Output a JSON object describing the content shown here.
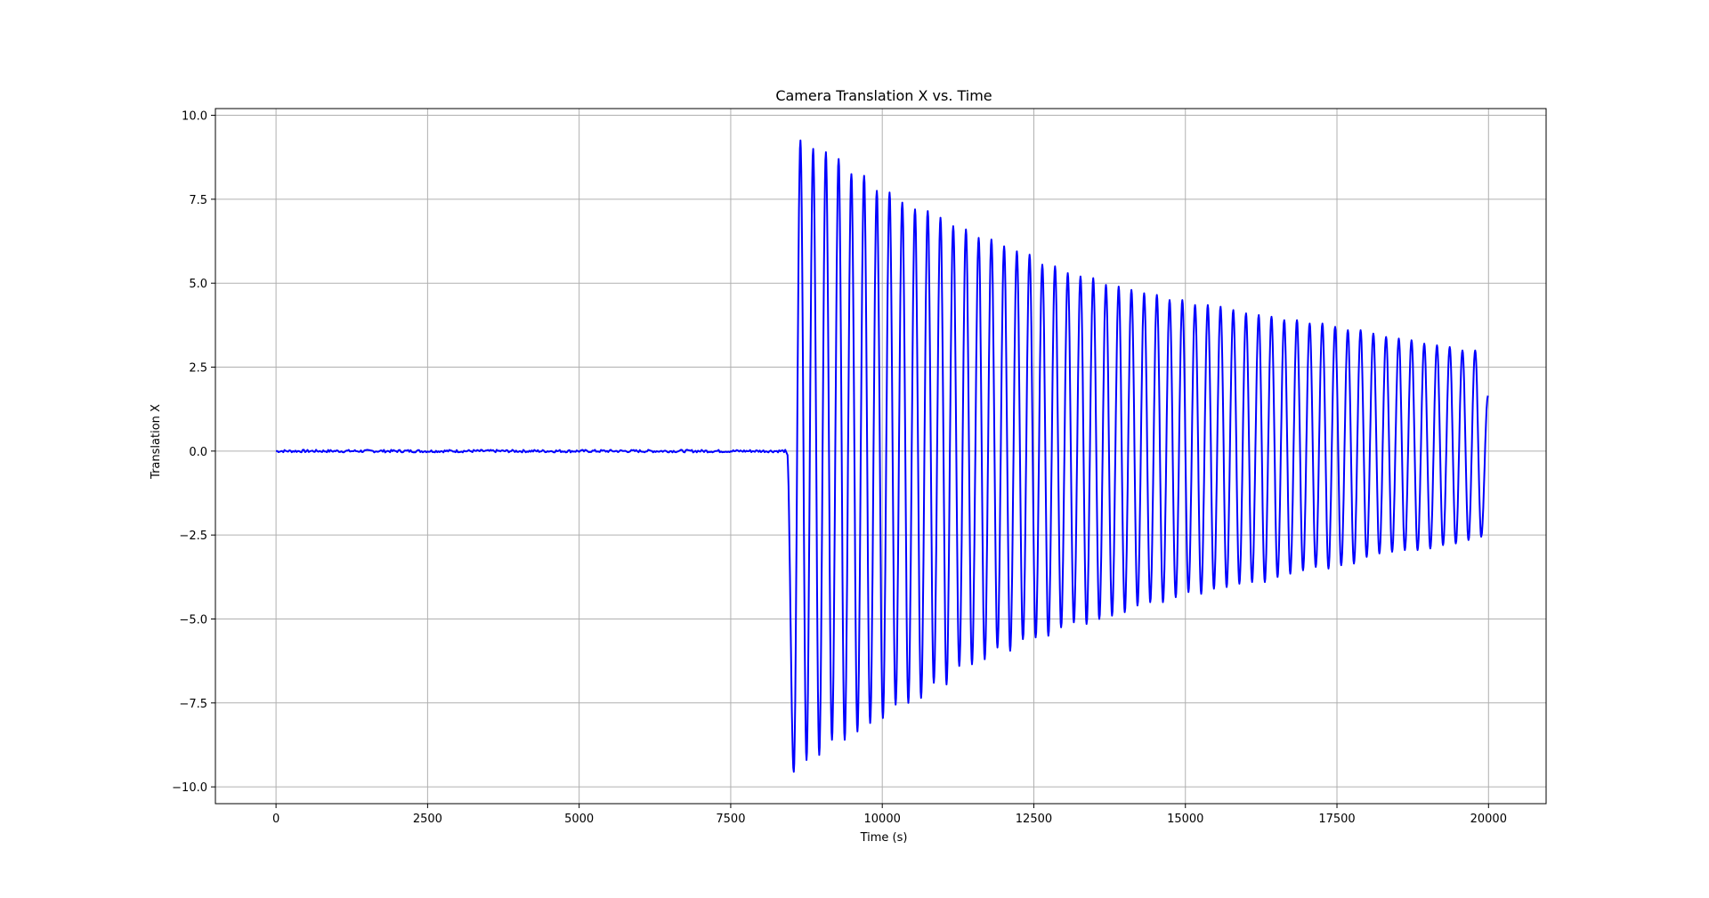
{
  "chart_data": {
    "type": "line",
    "title": "Camera Translation X vs. Time",
    "xlabel": "Time (s)",
    "ylabel": "Translation X",
    "xlim": [
      -1000,
      20950
    ],
    "ylim": [
      -10.5,
      10.2
    ],
    "grid": true,
    "legend": "none",
    "x_ticks": [
      0,
      2500,
      5000,
      7500,
      10000,
      12500,
      15000,
      17500,
      20000
    ],
    "x_tick_labels": [
      "0",
      "2500",
      "5000",
      "7500",
      "10000",
      "12500",
      "15000",
      "17500",
      "20000"
    ],
    "y_ticks": [
      10.0,
      7.5,
      5.0,
      2.5,
      0.0,
      -2.5,
      -5.0,
      -7.5,
      -10.0
    ],
    "y_tick_labels": [
      "10.0",
      "7.5",
      "5.0",
      "2.5",
      "0.0",
      "−2.5",
      "−5.0",
      "−7.5",
      "−10.0"
    ],
    "series": [
      {
        "color": "#0000ff",
        "flat_segment": {
          "x_start": 0,
          "x_end": 8400,
          "y": 0.0,
          "noise_amplitude": 0.04
        },
        "oscillation": {
          "x_start": 8430,
          "x_end": 19990,
          "end_value": 1.65,
          "peaks": [
            {
              "x": 8650,
              "y": 9.25
            },
            {
              "x": 8860,
              "y": 9.0
            },
            {
              "x": 9070,
              "y": 8.9
            },
            {
              "x": 9280,
              "y": 8.7
            },
            {
              "x": 9490,
              "y": 8.25
            },
            {
              "x": 9700,
              "y": 8.2
            },
            {
              "x": 9910,
              "y": 7.75
            },
            {
              "x": 10120,
              "y": 7.7
            },
            {
              "x": 10330,
              "y": 7.4
            },
            {
              "x": 10540,
              "y": 7.2
            },
            {
              "x": 10750,
              "y": 7.15
            },
            {
              "x": 10960,
              "y": 6.95
            },
            {
              "x": 11170,
              "y": 6.7
            },
            {
              "x": 11380,
              "y": 6.6
            },
            {
              "x": 11590,
              "y": 6.35
            },
            {
              "x": 11800,
              "y": 6.3
            },
            {
              "x": 12010,
              "y": 6.1
            },
            {
              "x": 12220,
              "y": 5.95
            },
            {
              "x": 12430,
              "y": 5.85
            },
            {
              "x": 12640,
              "y": 5.55
            },
            {
              "x": 12850,
              "y": 5.5
            },
            {
              "x": 13060,
              "y": 5.3
            },
            {
              "x": 13270,
              "y": 5.2
            },
            {
              "x": 13480,
              "y": 5.15
            },
            {
              "x": 13690,
              "y": 4.95
            },
            {
              "x": 13900,
              "y": 4.9
            },
            {
              "x": 14110,
              "y": 4.8
            },
            {
              "x": 14320,
              "y": 4.7
            },
            {
              "x": 14530,
              "y": 4.65
            },
            {
              "x": 14740,
              "y": 4.5
            },
            {
              "x": 14950,
              "y": 4.5
            },
            {
              "x": 15160,
              "y": 4.35
            },
            {
              "x": 15370,
              "y": 4.35
            },
            {
              "x": 15580,
              "y": 4.3
            },
            {
              "x": 15790,
              "y": 4.2
            },
            {
              "x": 16000,
              "y": 4.1
            },
            {
              "x": 16210,
              "y": 4.05
            },
            {
              "x": 16420,
              "y": 4.0
            },
            {
              "x": 16630,
              "y": 3.9
            },
            {
              "x": 16840,
              "y": 3.9
            },
            {
              "x": 17050,
              "y": 3.8
            },
            {
              "x": 17260,
              "y": 3.8
            },
            {
              "x": 17470,
              "y": 3.7
            },
            {
              "x": 17680,
              "y": 3.6
            },
            {
              "x": 17890,
              "y": 3.6
            },
            {
              "x": 18100,
              "y": 3.5
            },
            {
              "x": 18310,
              "y": 3.4
            },
            {
              "x": 18520,
              "y": 3.35
            },
            {
              "x": 18730,
              "y": 3.3
            },
            {
              "x": 18940,
              "y": 3.2
            },
            {
              "x": 19150,
              "y": 3.15
            },
            {
              "x": 19360,
              "y": 3.1
            },
            {
              "x": 19570,
              "y": 3.0
            },
            {
              "x": 19780,
              "y": 3.0
            }
          ],
          "troughs": [
            {
              "x": 8540,
              "y": -9.55
            },
            {
              "x": 8750,
              "y": -9.2
            },
            {
              "x": 8960,
              "y": -9.05
            },
            {
              "x": 9170,
              "y": -8.6
            },
            {
              "x": 9380,
              "y": -8.6
            },
            {
              "x": 9590,
              "y": -8.35
            },
            {
              "x": 9800,
              "y": -8.1
            },
            {
              "x": 10010,
              "y": -7.95
            },
            {
              "x": 10220,
              "y": -7.55
            },
            {
              "x": 10430,
              "y": -7.5
            },
            {
              "x": 10640,
              "y": -7.35
            },
            {
              "x": 10850,
              "y": -6.9
            },
            {
              "x": 11060,
              "y": -6.95
            },
            {
              "x": 11270,
              "y": -6.4
            },
            {
              "x": 11480,
              "y": -6.35
            },
            {
              "x": 11690,
              "y": -6.2
            },
            {
              "x": 11900,
              "y": -5.85
            },
            {
              "x": 12110,
              "y": -5.95
            },
            {
              "x": 12320,
              "y": -5.6
            },
            {
              "x": 12530,
              "y": -5.55
            },
            {
              "x": 12740,
              "y": -5.5
            },
            {
              "x": 12950,
              "y": -5.25
            },
            {
              "x": 13160,
              "y": -5.1
            },
            {
              "x": 13370,
              "y": -5.15
            },
            {
              "x": 13580,
              "y": -5.0
            },
            {
              "x": 13790,
              "y": -4.9
            },
            {
              "x": 14000,
              "y": -4.8
            },
            {
              "x": 14210,
              "y": -4.6
            },
            {
              "x": 14420,
              "y": -4.5
            },
            {
              "x": 14630,
              "y": -4.5
            },
            {
              "x": 14840,
              "y": -4.35
            },
            {
              "x": 15050,
              "y": -4.2
            },
            {
              "x": 15260,
              "y": -4.25
            },
            {
              "x": 15470,
              "y": -4.1
            },
            {
              "x": 15680,
              "y": -4.05
            },
            {
              "x": 15890,
              "y": -3.95
            },
            {
              "x": 16100,
              "y": -3.9
            },
            {
              "x": 16310,
              "y": -3.9
            },
            {
              "x": 16520,
              "y": -3.75
            },
            {
              "x": 16730,
              "y": -3.65
            },
            {
              "x": 16940,
              "y": -3.55
            },
            {
              "x": 17150,
              "y": -3.45
            },
            {
              "x": 17360,
              "y": -3.5
            },
            {
              "x": 17570,
              "y": -3.4
            },
            {
              "x": 17780,
              "y": -3.35
            },
            {
              "x": 17990,
              "y": -3.15
            },
            {
              "x": 18200,
              "y": -3.05
            },
            {
              "x": 18410,
              "y": -3.0
            },
            {
              "x": 18620,
              "y": -2.95
            },
            {
              "x": 18830,
              "y": -2.95
            },
            {
              "x": 19040,
              "y": -2.9
            },
            {
              "x": 19250,
              "y": -2.8
            },
            {
              "x": 19460,
              "y": -2.75
            },
            {
              "x": 19670,
              "y": -2.65
            },
            {
              "x": 19880,
              "y": -2.55
            }
          ]
        }
      }
    ]
  }
}
